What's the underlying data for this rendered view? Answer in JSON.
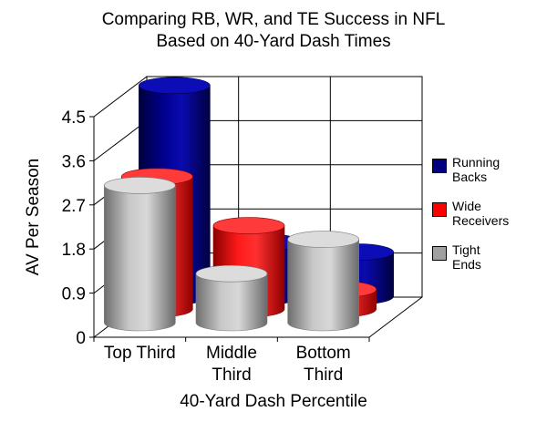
{
  "chart_data": {
    "type": "bar",
    "style": "3d-cylinder",
    "title": [
      "Comparing RB, WR, and TE Success in NFL",
      "Based on 40-Yard Dash Times"
    ],
    "xlabel": "40-Yard Dash Percentile",
    "ylabel": "AV Per Season",
    "categories": [
      [
        "Top Third"
      ],
      [
        "Middle",
        "Third"
      ],
      [
        "Bottom",
        "Third"
      ]
    ],
    "ylim": [
      0,
      4.5
    ],
    "yticks": [
      "0",
      "0.9",
      "1.8",
      "2.7",
      "3.6",
      "4.5"
    ],
    "grid": true,
    "legend_position": "right",
    "series": [
      {
        "name": [
          "Running",
          "Backs"
        ],
        "color": "#000080",
        "values": [
          4.3,
          1.1,
          0.9
        ]
      },
      {
        "name": [
          "Wide",
          "Receivers"
        ],
        "color": "#ff0000",
        "values": [
          2.7,
          1.7,
          0.4
        ]
      },
      {
        "name": [
          "Tight",
          "Ends"
        ],
        "color": "#a0a0a0",
        "values": [
          2.8,
          1.0,
          1.7
        ]
      }
    ]
  }
}
